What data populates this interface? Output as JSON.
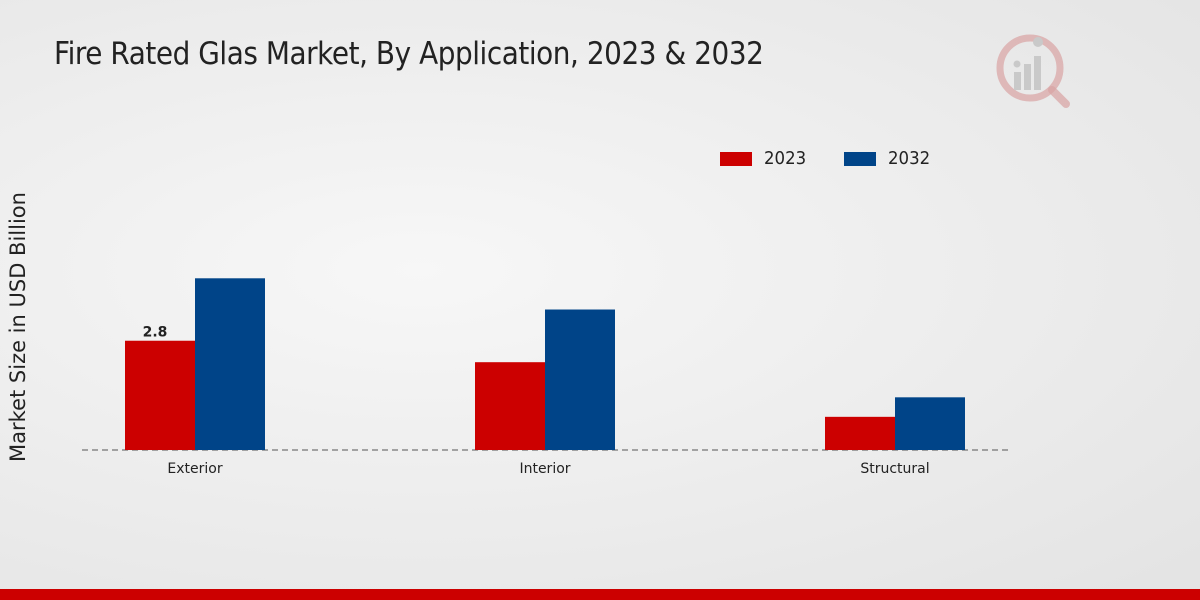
{
  "chart_data": {
    "type": "bar",
    "title": "Fire Rated Glas Market, By Application, 2023 & 2032",
    "ylabel": "Market Size in USD Billion",
    "xlabel": "",
    "categories": [
      "Exterior",
      "Interior",
      "Structural"
    ],
    "series": [
      {
        "name": "2023",
        "color": "#cc0000",
        "values": [
          2.8,
          2.25,
          0.85
        ]
      },
      {
        "name": "2032",
        "color": "#004488",
        "values": [
          4.4,
          3.6,
          1.35
        ]
      }
    ],
    "data_labels": [
      {
        "series": 0,
        "index": 0,
        "text": "2.8"
      }
    ],
    "ylim": [
      0,
      8.2
    ],
    "legend_position": "top-right",
    "grid": false
  },
  "colors": {
    "accent_red": "#cc0000",
    "accent_blue": "#004488"
  },
  "logo_icon": "market-research-logo-icon"
}
